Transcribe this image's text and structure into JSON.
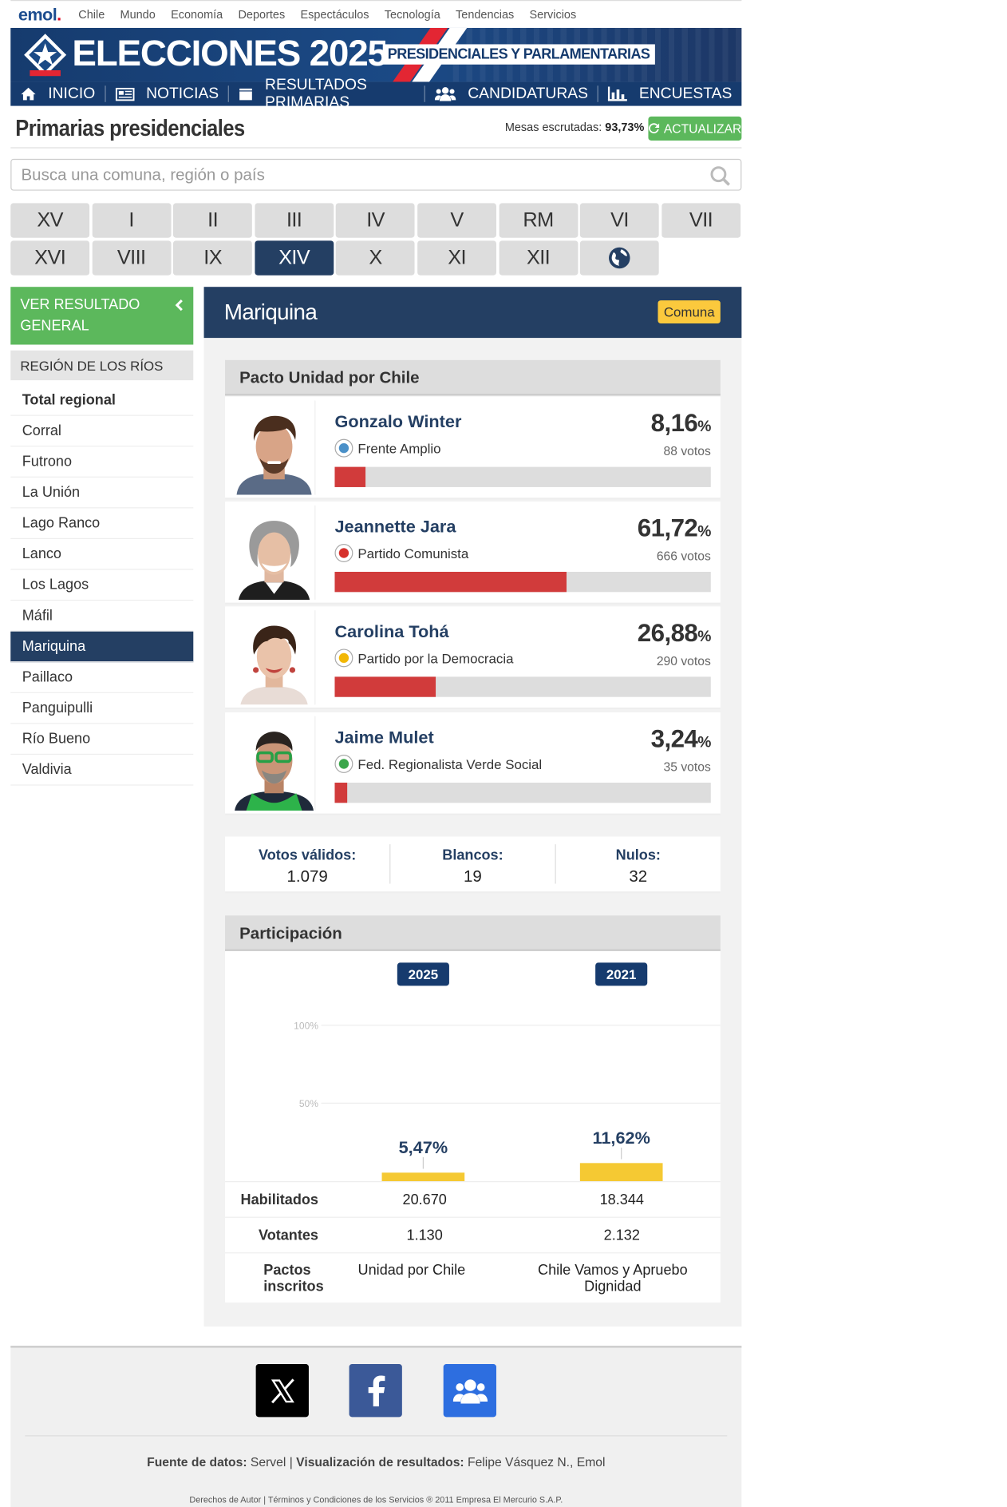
{
  "topnav": {
    "logo_main": "emol",
    "logo_dot": ".",
    "links": [
      "Chile",
      "Mundo",
      "Economía",
      "Deportes",
      "Espectáculos",
      "Tecnología",
      "Tendencias",
      "Servicios"
    ]
  },
  "banner": {
    "title": "ELECCIONES 2025",
    "subtitle": "PRESIDENCIALES Y PARLAMENTARIAS"
  },
  "menu": {
    "items": [
      {
        "label": "INICIO",
        "icon": "home-icon"
      },
      {
        "label": "NOTICIAS",
        "icon": "newspaper-icon"
      },
      {
        "label": "RESULTADOS PRIMARIAS",
        "icon": "ballot-box-icon"
      },
      {
        "label": "CANDIDATURAS",
        "icon": "users-icon"
      },
      {
        "label": "ENCUESTAS",
        "icon": "bar-chart-icon"
      }
    ]
  },
  "header": {
    "title": "Primarias presidenciales",
    "mesas_label": "Mesas escrutadas:",
    "mesas_value": "93,73%",
    "refresh_label": "ACTUALIZAR"
  },
  "search": {
    "placeholder": "Busca una comuna, región o país"
  },
  "regions": {
    "row1": [
      "XV",
      "I",
      "II",
      "III",
      "IV",
      "V",
      "RM",
      "VI",
      "VII"
    ],
    "row2": [
      "XVI",
      "VIII",
      "IX",
      "XIV",
      "X",
      "XI",
      "XII"
    ],
    "active": "XIV",
    "world_icon": "globe-icon"
  },
  "sidebar": {
    "general_line1": "VER RESULTADO",
    "general_line2": "GENERAL",
    "region_name": "REGIÓN DE LOS RÍOS",
    "comunas": [
      "Total regional",
      "Corral",
      "Futrono",
      "La Unión",
      "Lago Ranco",
      "Lanco",
      "Los Lagos",
      "Máfil",
      "Mariquina",
      "Paillaco",
      "Panguipulli",
      "Río Bueno",
      "Valdivia"
    ],
    "active": "Mariquina"
  },
  "main": {
    "place": "Mariquina",
    "badge": "Comuna",
    "pact": "Pacto Unidad por Chile",
    "candidates": [
      {
        "name": "Gonzalo Winter",
        "party": "Frente Amplio",
        "pct": "8,16",
        "votes": "88 votos",
        "share": 8.16,
        "party_color": "#4a90c8"
      },
      {
        "name": "Jeannette Jara",
        "party": "Partido Comunista",
        "pct": "61,72",
        "votes": "666 votos",
        "share": 61.72,
        "party_color": "#d6302b"
      },
      {
        "name": "Carolina Tohá",
        "party": "Partido por la Democracia",
        "pct": "26,88",
        "votes": "290 votos",
        "share": 26.88,
        "party_color": "#f2b705"
      },
      {
        "name": "Jaime Mulet",
        "party": "Fed. Regionalista Verde Social",
        "pct": "3,24",
        "votes": "35 votos",
        "share": 3.24,
        "party_color": "#3aa64a"
      }
    ],
    "pct_symbol": "%",
    "totals": [
      {
        "label": "Votos válidos:",
        "value": "1.079"
      },
      {
        "label": "Blancos:",
        "value": "19"
      },
      {
        "label": "Nulos:",
        "value": "32"
      }
    ],
    "participation_title": "Participación"
  },
  "chart_data": {
    "type": "bar",
    "categories": [
      "2025",
      "2021"
    ],
    "values": [
      5.47,
      11.62
    ],
    "value_labels": [
      "5,47%",
      "11,62%"
    ],
    "ylim": [
      0,
      100
    ],
    "yticks": [
      "100%",
      "50%"
    ],
    "bar_color": "#f5c933"
  },
  "participation_table": {
    "rows": [
      {
        "label": "Habilitados",
        "v2025": "20.670",
        "v2021": "18.344"
      },
      {
        "label": "Votantes",
        "v2025": "1.130",
        "v2021": "2.132"
      },
      {
        "label": "Pactos inscritos",
        "v2025": "Unidad por Chile",
        "v2021": "Chile Vamos y Apruebo Dignidad"
      }
    ]
  },
  "footer": {
    "social": [
      "x-icon",
      "facebook-icon",
      "community-icon"
    ],
    "fuente_label": "Fuente de datos:",
    "fuente_value": "Servel",
    "sep": "|",
    "visual_label": "Visualización de resultados:",
    "visual_value": "Felipe Vásquez N., Emol",
    "copyright": "Derechos de Autor | Términos y Condiciones de los Servicios ® 2011 Empresa El Mercurio S.A.P."
  }
}
